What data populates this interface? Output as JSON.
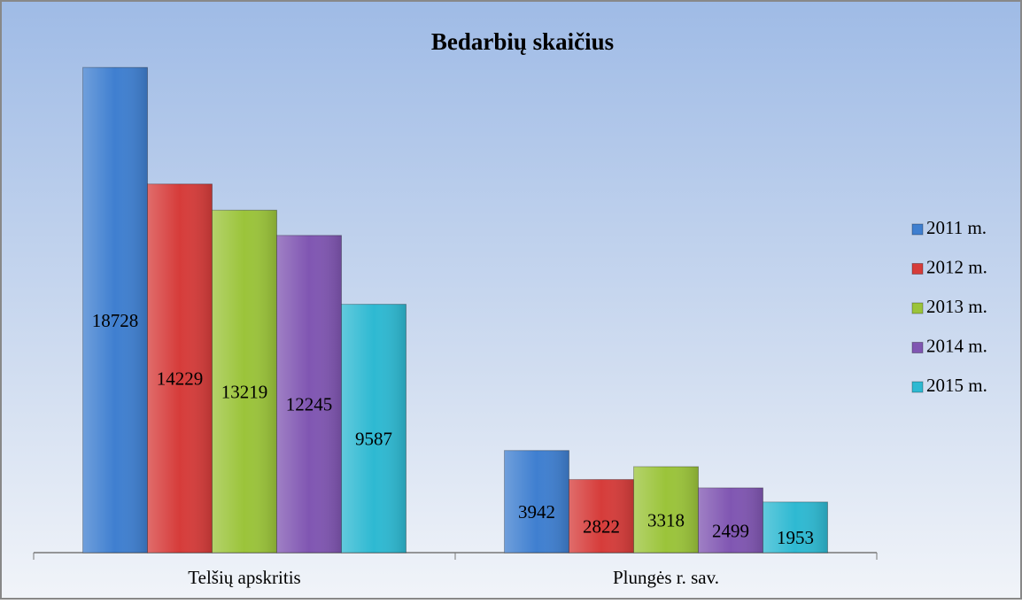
{
  "chart_data": {
    "type": "bar",
    "title": "Bedarbių skaičius",
    "categories": [
      "Telšių apskritis",
      "Plungės r. sav."
    ],
    "series": [
      {
        "name": "2011 m.",
        "color": "#3f7fd0",
        "values": [
          18728,
          3942
        ]
      },
      {
        "name": "2012 m.",
        "color": "#d63c3a",
        "values": [
          14229,
          2822
        ]
      },
      {
        "name": "2013 m.",
        "color": "#9bc43a",
        "values": [
          13219,
          3318
        ]
      },
      {
        "name": "2014 m.",
        "color": "#8056b2",
        "values": [
          12245,
          2499
        ]
      },
      {
        "name": "2015 m.",
        "color": "#2eb9d2",
        "values": [
          9587,
          1953
        ]
      }
    ],
    "ylim": [
      0,
      20000
    ],
    "legend": "right"
  }
}
